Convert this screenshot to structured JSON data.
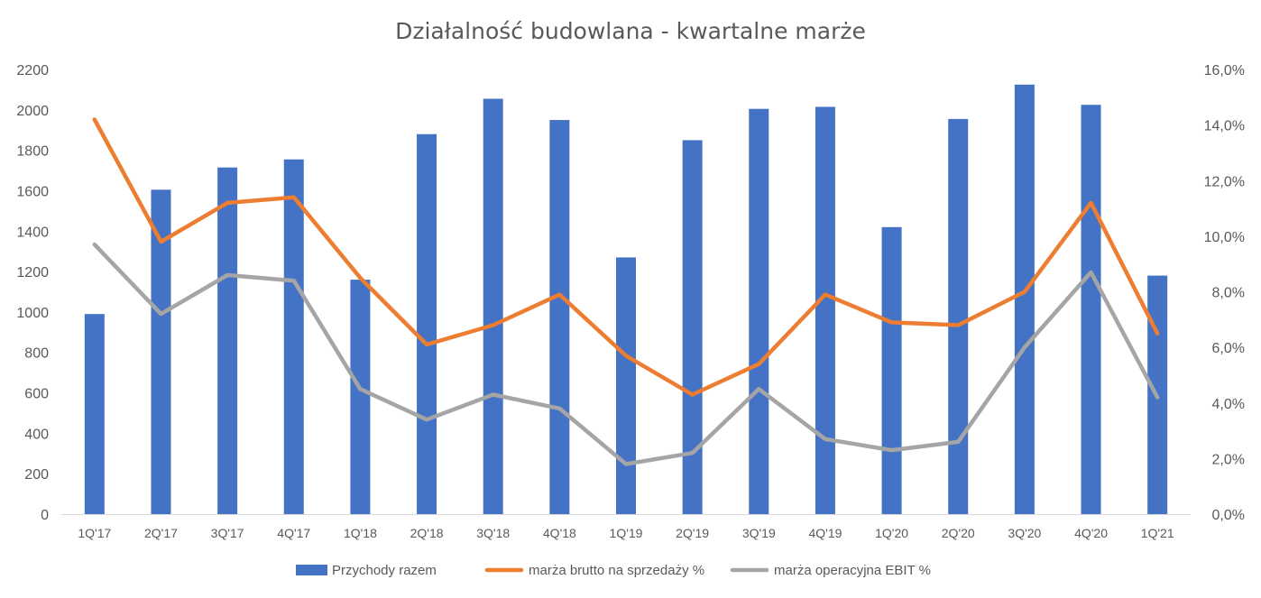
{
  "chart_data": {
    "type": "bar",
    "title": "Działalność budowlana - kwartalne marże",
    "categories": [
      "1Q'17",
      "2Q'17",
      "3Q'17",
      "4Q'17",
      "1Q'18",
      "2Q'18",
      "3Q'18",
      "4Q'18",
      "1Q'19",
      "2Q'19",
      "3Q'19",
      "4Q'19",
      "1Q'20",
      "2Q'20",
      "3Q'20",
      "4Q'20",
      "1Q'21"
    ],
    "left_axis": {
      "ylim": [
        0,
        2200
      ],
      "ticks": [
        "0",
        "200",
        "400",
        "600",
        "800",
        "1000",
        "1200",
        "1400",
        "1600",
        "1800",
        "2000",
        "2200"
      ]
    },
    "right_axis": {
      "ylim": [
        0,
        16
      ],
      "ticks": [
        "0,0%",
        "2,0%",
        "4,0%",
        "6,0%",
        "8,0%",
        "10,0%",
        "12,0%",
        "14,0%",
        "16,0%"
      ]
    },
    "series": [
      {
        "name": "Przychody razem",
        "kind": "bar",
        "axis": "left",
        "color": "#4472C4",
        "values": [
          990,
          1605,
          1715,
          1755,
          1160,
          1880,
          2055,
          1950,
          1270,
          1850,
          2005,
          2015,
          1420,
          1955,
          2125,
          2025,
          1180
        ]
      },
      {
        "name": "marża brutto na sprzedaży %",
        "kind": "line",
        "axis": "right",
        "color": "#ED7D31",
        "values": [
          14.2,
          9.8,
          11.2,
          11.4,
          8.5,
          6.1,
          6.8,
          7.9,
          5.7,
          4.3,
          5.4,
          7.9,
          6.9,
          6.8,
          8.0,
          11.2,
          6.5
        ]
      },
      {
        "name": "marża operacyjna EBIT %",
        "kind": "line",
        "axis": "right",
        "color": "#A5A5A5",
        "values": [
          9.7,
          7.2,
          8.6,
          8.4,
          4.5,
          3.4,
          4.3,
          3.8,
          1.8,
          2.2,
          4.5,
          2.7,
          2.3,
          2.6,
          6.0,
          8.7,
          4.2
        ]
      }
    ],
    "grid": false,
    "legend_position": "bottom"
  }
}
